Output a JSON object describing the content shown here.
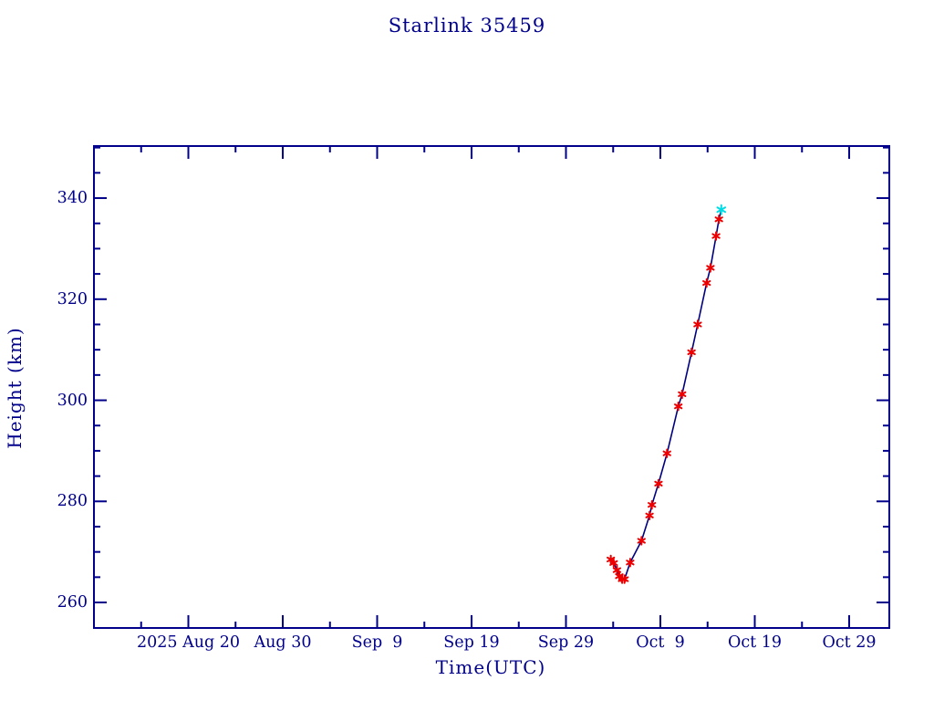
{
  "page": {
    "background": "#ffffff"
  },
  "chart_data": {
    "type": "line",
    "title": "Starlink 35459",
    "xlabel": "Time(UTC)",
    "ylabel": "Height (km)",
    "text_color": "#00008B",
    "frame_color": "#00008B",
    "grid": false,
    "legend": false,
    "x_axis": {
      "unit": "days since 2025-08-10 (UTC)",
      "range_days": [
        0,
        84.25
      ],
      "minor_tick_step_days": 5,
      "major_ticks": [
        {
          "day": 10,
          "label": "2025 Aug 20"
        },
        {
          "day": 20,
          "label": "Aug 30"
        },
        {
          "day": 30,
          "label": "Sep  9"
        },
        {
          "day": 40,
          "label": "Sep 19"
        },
        {
          "day": 50,
          "label": "Sep 29"
        },
        {
          "day": 60,
          "label": "Oct  9"
        },
        {
          "day": 70,
          "label": "Oct 19"
        },
        {
          "day": 80,
          "label": "Oct 29"
        }
      ]
    },
    "y_axis": {
      "unit": "km",
      "range_km": [
        254.95,
        350.3
      ],
      "minor_tick_step_km": 5,
      "major_ticks": [
        260,
        280,
        300,
        320,
        340
      ]
    },
    "series": [
      {
        "name": "height-history",
        "marker": "asterisk",
        "marker_color": "#EE0000",
        "line_color": "#000080",
        "points": [
          {
            "day": 54.75,
            "height_km": 268.5
          },
          {
            "day": 55.05,
            "height_km": 267.8
          },
          {
            "day": 55.4,
            "height_km": 266.4
          },
          {
            "day": 55.65,
            "height_km": 265.2
          },
          {
            "day": 55.95,
            "height_km": 264.6
          },
          {
            "day": 56.2,
            "height_km": 264.6
          },
          {
            "day": 56.8,
            "height_km": 267.9
          },
          {
            "day": 58.0,
            "height_km": 272.2
          },
          {
            "day": 58.85,
            "height_km": 277.2
          },
          {
            "day": 59.1,
            "height_km": 279.3
          },
          {
            "day": 59.8,
            "height_km": 283.5
          },
          {
            "day": 60.7,
            "height_km": 289.5
          },
          {
            "day": 61.9,
            "height_km": 298.8
          },
          {
            "day": 62.3,
            "height_km": 301.2
          },
          {
            "day": 63.3,
            "height_km": 309.5
          },
          {
            "day": 63.95,
            "height_km": 315.0
          },
          {
            "day": 64.9,
            "height_km": 323.2
          },
          {
            "day": 65.3,
            "height_km": 326.2
          },
          {
            "day": 65.9,
            "height_km": 332.5
          },
          {
            "day": 66.2,
            "height_km": 335.8
          }
        ]
      },
      {
        "name": "latest-point",
        "marker": "asterisk",
        "marker_color": "#00DCE6",
        "line_color": "#000080",
        "points": [
          {
            "day": 66.45,
            "height_km": 337.7
          }
        ]
      }
    ]
  }
}
